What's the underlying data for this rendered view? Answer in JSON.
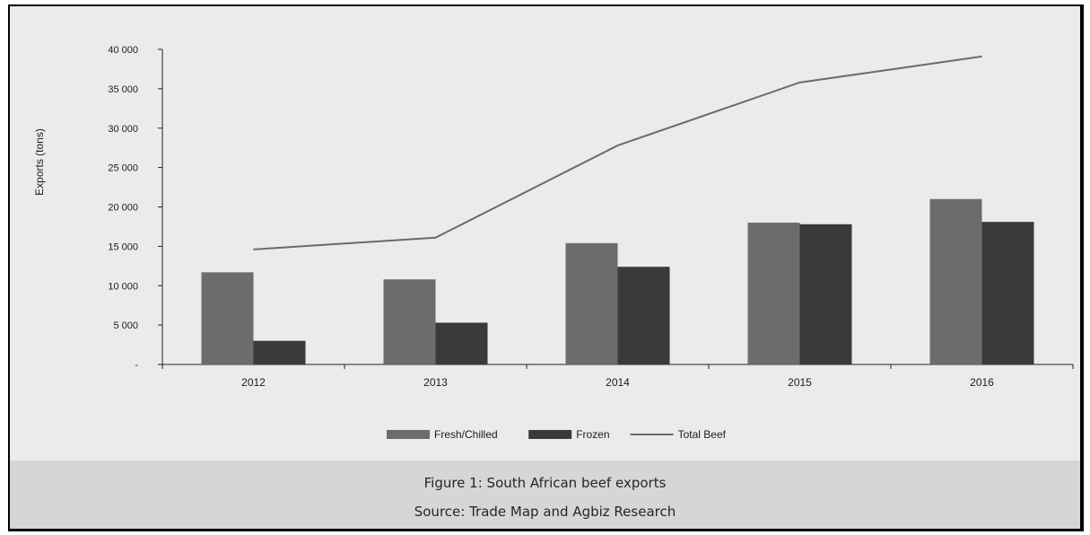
{
  "chart_data": {
    "type": "bar",
    "categories": [
      "2012",
      "2013",
      "2014",
      "2015",
      "2016"
    ],
    "series": [
      {
        "name": "Fresh/Chilled",
        "kind": "bar",
        "color": "#6c6c6c",
        "values": [
          11700,
          10800,
          15400,
          18000,
          21000
        ]
      },
      {
        "name": "Frozen",
        "kind": "bar",
        "color": "#3a3a3a",
        "values": [
          3000,
          5300,
          12400,
          17800,
          18100
        ]
      },
      {
        "name": "Total Beef",
        "kind": "line",
        "color": "#6a6a6a",
        "values": [
          14600,
          16100,
          27800,
          35800,
          39100
        ]
      }
    ],
    "ylabel": "Exports (tons)",
    "xlabel": "",
    "ylim": [
      0,
      40000
    ],
    "yticks": [
      0,
      5000,
      10000,
      15000,
      20000,
      25000,
      30000,
      35000,
      40000
    ],
    "ytick_labels": [
      "-",
      "5 000",
      "10 000",
      "15 000",
      "20 000",
      "25 000",
      "30 000",
      "35 000",
      "40 000"
    ],
    "grid": false,
    "legend_position": "bottom"
  },
  "caption": {
    "title": "Figure 1: South African beef exports",
    "source": "Source: Trade Map and Agbiz Research"
  }
}
